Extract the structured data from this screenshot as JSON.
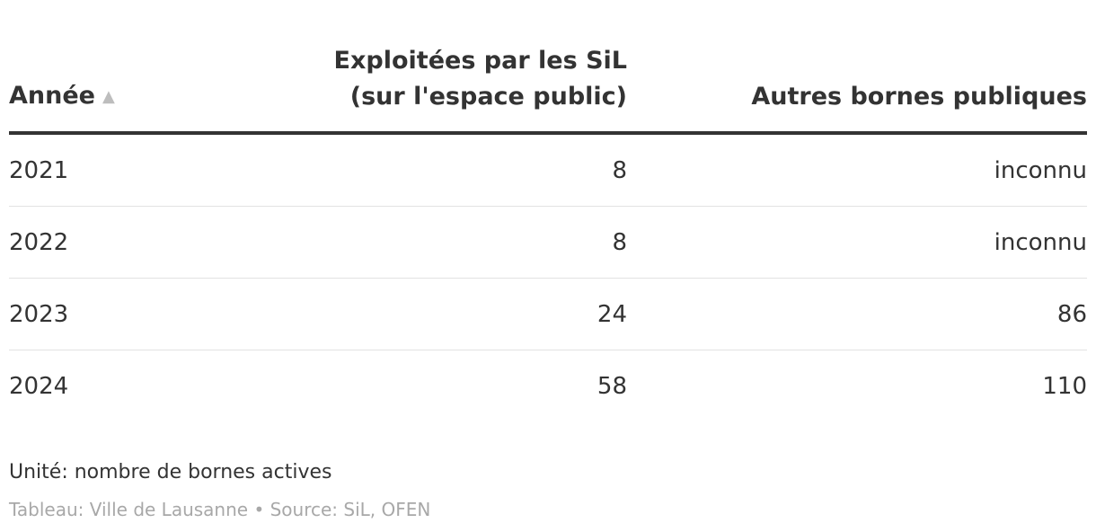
{
  "chart_data": {
    "type": "table",
    "columns": [
      {
        "label": "Année",
        "sort": "ascending"
      },
      {
        "label_lines": [
          "Exploitées par les SiL",
          "(sur l'espace public)"
        ]
      },
      {
        "label": "Autres bornes publiques"
      }
    ],
    "rows": [
      [
        "2021",
        "8",
        "inconnu"
      ],
      [
        "2022",
        "8",
        "inconnu"
      ],
      [
        "2023",
        "24",
        "86"
      ],
      [
        "2024",
        "58",
        "110"
      ]
    ],
    "unit_note": "Unité: nombre de bornes actives",
    "credit": "Tableau: Ville de Lausanne • Source: SiL, OFEN"
  },
  "icons": {
    "sort": "sort-ascending-icon"
  },
  "colors": {
    "text": "#333333",
    "muted": "#a8a8a8",
    "rule": "#333333",
    "row_divider": "#e2e2e2",
    "sort_icon": "#bdbdbd"
  }
}
